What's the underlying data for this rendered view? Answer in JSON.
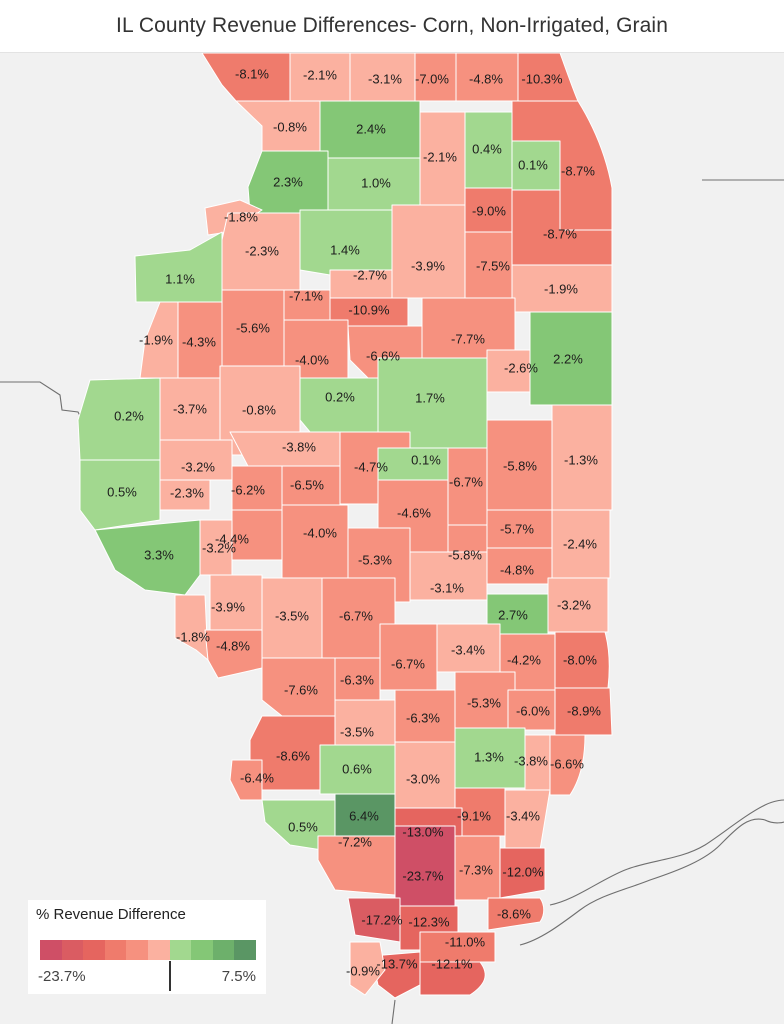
{
  "title": "IL County Revenue Differences- Corn, Non-Irrigated, Grain",
  "legend": {
    "title": "% Revenue Difference",
    "min_label": "-23.7%",
    "max_label": "7.5%",
    "min": -23.7,
    "max": 7.5,
    "colors": [
      "#cf4f66",
      "#da5c62",
      "#e5655f",
      "#ef7b6c",
      "#f6917f",
      "#fbb1a0",
      "#a2d88f",
      "#84c776",
      "#6db06b",
      "#5a9664"
    ]
  },
  "counties": [
    {
      "label": "-8.1%",
      "value": -8.1
    },
    {
      "label": "-2.1%",
      "value": -2.1
    },
    {
      "label": "-3.1%",
      "value": -3.1
    },
    {
      "label": "-7.0%",
      "value": -7.0
    },
    {
      "label": "-4.8%",
      "value": -4.8
    },
    {
      "label": "-10.3%",
      "value": -10.3
    },
    {
      "label": "-0.8%",
      "value": -0.8
    },
    {
      "label": "2.4%",
      "value": 2.4
    },
    {
      "label": "-2.1%",
      "value": -2.1
    },
    {
      "label": "0.4%",
      "value": 0.4
    },
    {
      "label": "0.1%",
      "value": 0.1
    },
    {
      "label": "-8.7%",
      "value": -8.7
    },
    {
      "label": "2.3%",
      "value": 2.3
    },
    {
      "label": "1.0%",
      "value": 1.0
    },
    {
      "label": "-9.0%",
      "value": -9.0
    },
    {
      "label": "-1.8%",
      "value": -1.8
    },
    {
      "label": "-8.7%",
      "value": -8.7
    },
    {
      "label": "-2.3%",
      "value": -2.3
    },
    {
      "label": "1.4%",
      "value": 1.4
    },
    {
      "label": "-3.9%",
      "value": -3.9
    },
    {
      "label": "-7.5%",
      "value": -7.5
    },
    {
      "label": "1.1%",
      "value": 1.1
    },
    {
      "label": "-2.7%",
      "value": -2.7
    },
    {
      "label": "-1.9%",
      "value": -1.9
    },
    {
      "label": "-7.1%",
      "value": -7.1
    },
    {
      "label": "-10.9%",
      "value": -10.9
    },
    {
      "label": "-5.6%",
      "value": -5.6
    },
    {
      "label": "-1.9%",
      "value": -1.9
    },
    {
      "label": "-4.3%",
      "value": -4.3
    },
    {
      "label": "-7.7%",
      "value": -7.7
    },
    {
      "label": "-6.6%",
      "value": -6.6
    },
    {
      "label": "-4.0%",
      "value": -4.0
    },
    {
      "label": "2.2%",
      "value": 2.2
    },
    {
      "label": "-2.6%",
      "value": -2.6
    },
    {
      "label": "0.2%",
      "value": 0.2
    },
    {
      "label": "-3.7%",
      "value": -3.7
    },
    {
      "label": "-0.8%",
      "value": -0.8
    },
    {
      "label": "0.2%",
      "value": 0.2
    },
    {
      "label": "1.7%",
      "value": 1.7
    },
    {
      "label": "-3.8%",
      "value": -3.8
    },
    {
      "label": "-1.3%",
      "value": -1.3
    },
    {
      "label": "-5.8%",
      "value": -5.8
    },
    {
      "label": "-3.2%",
      "value": -3.2
    },
    {
      "label": "-4.7%",
      "value": -4.7
    },
    {
      "label": "0.1%",
      "value": 0.1
    },
    {
      "label": "-6.5%",
      "value": -6.5
    },
    {
      "label": "-6.2%",
      "value": -6.2
    },
    {
      "label": "-6.7%",
      "value": -6.7
    },
    {
      "label": "0.5%",
      "value": 0.5
    },
    {
      "label": "-2.3%",
      "value": -2.3
    },
    {
      "label": "-4.6%",
      "value": -4.6
    },
    {
      "label": "-5.7%",
      "value": -5.7
    },
    {
      "label": "-4.4%",
      "value": -4.4
    },
    {
      "label": "-4.0%",
      "value": -4.0
    },
    {
      "label": "-2.4%",
      "value": -2.4
    },
    {
      "label": "-3.2%",
      "value": -3.2
    },
    {
      "label": "3.3%",
      "value": 3.3
    },
    {
      "label": "-5.3%",
      "value": -5.3
    },
    {
      "label": "-5.8%",
      "value": -5.8
    },
    {
      "label": "-4.8%",
      "value": -4.8
    },
    {
      "label": "-3.1%",
      "value": -3.1
    },
    {
      "label": "-3.9%",
      "value": -3.9
    },
    {
      "label": "-3.5%",
      "value": -3.5
    },
    {
      "label": "-6.7%",
      "value": -6.7
    },
    {
      "label": "2.7%",
      "value": 2.7
    },
    {
      "label": "-3.2%",
      "value": -3.2
    },
    {
      "label": "-1.8%",
      "value": -1.8
    },
    {
      "label": "-4.8%",
      "value": -4.8
    },
    {
      "label": "-3.4%",
      "value": -3.4
    },
    {
      "label": "-6.7%",
      "value": -6.7
    },
    {
      "label": "-4.2%",
      "value": -4.2
    },
    {
      "label": "-8.0%",
      "value": -8.0
    },
    {
      "label": "-7.6%",
      "value": -7.6
    },
    {
      "label": "-6.3%",
      "value": -6.3
    },
    {
      "label": "-5.3%",
      "value": -5.3
    },
    {
      "label": "-6.0%",
      "value": -6.0
    },
    {
      "label": "-8.9%",
      "value": -8.9
    },
    {
      "label": "-3.5%",
      "value": -3.5
    },
    {
      "label": "-6.3%",
      "value": -6.3
    },
    {
      "label": "-8.6%",
      "value": -8.6
    },
    {
      "label": "1.3%",
      "value": 1.3
    },
    {
      "label": "-3.8%",
      "value": -3.8
    },
    {
      "label": "-6.6%",
      "value": -6.6
    },
    {
      "label": "0.6%",
      "value": 0.6
    },
    {
      "label": "-6.4%",
      "value": -6.4
    },
    {
      "label": "-3.0%",
      "value": -3.0
    },
    {
      "label": "6.4%",
      "value": 6.4
    },
    {
      "label": "-9.1%",
      "value": -9.1
    },
    {
      "label": "-3.4%",
      "value": -3.4
    },
    {
      "label": "0.5%",
      "value": 0.5
    },
    {
      "label": "-13.0%",
      "value": -13.0
    },
    {
      "label": "-7.2%",
      "value": -7.2
    },
    {
      "label": "-23.7%",
      "value": -23.7
    },
    {
      "label": "-7.3%",
      "value": -7.3
    },
    {
      "label": "-12.0%",
      "value": -12.0
    },
    {
      "label": "-17.2%",
      "value": -17.2
    },
    {
      "label": "-12.3%",
      "value": -12.3
    },
    {
      "label": "-8.6%",
      "value": -8.6
    },
    {
      "label": "-11.0%",
      "value": -11.0
    },
    {
      "label": "-13.7%",
      "value": -13.7
    },
    {
      "label": "-12.1%",
      "value": -12.1
    },
    {
      "label": "-0.9%",
      "value": -0.9
    }
  ]
}
